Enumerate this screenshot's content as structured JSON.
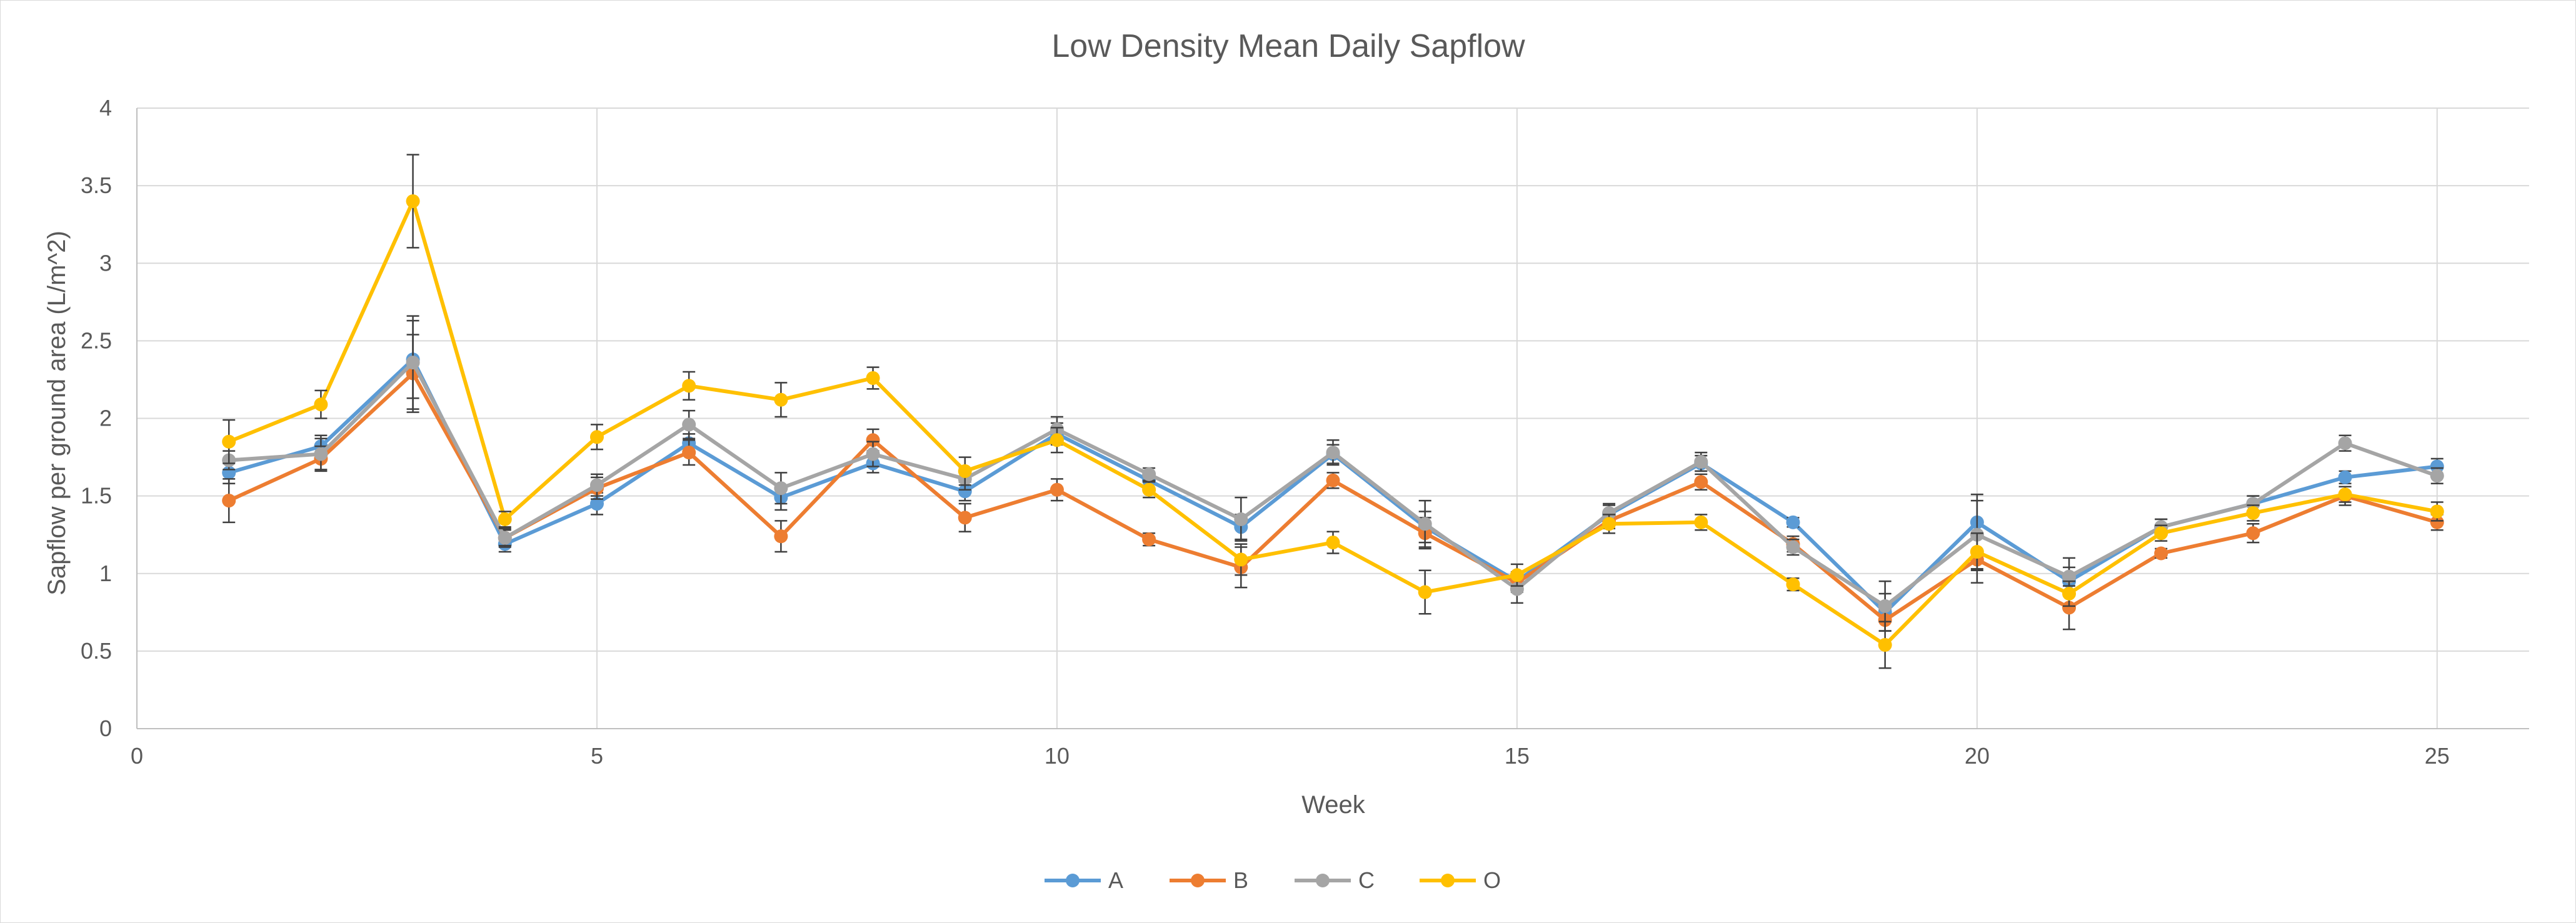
{
  "chart_data": {
    "type": "line",
    "title": "Low Density Mean Daily Sapflow",
    "xlabel": "Week",
    "ylabel": "Sapflow per ground area (L/m^2)",
    "xlim": [
      0,
      26
    ],
    "ylim": [
      0,
      4
    ],
    "x_ticks": [
      0,
      5,
      10,
      15,
      20,
      25
    ],
    "y_ticks": [
      0,
      0.5,
      1,
      1.5,
      2,
      2.5,
      3,
      3.5,
      4
    ],
    "x_tick_labels": [
      "0",
      "5",
      "10",
      "15",
      "20",
      "25"
    ],
    "y_tick_labels": [
      "0",
      "0.5",
      "1",
      "1.5",
      "2",
      "2.5",
      "3",
      "3.5",
      "4"
    ],
    "grid": true,
    "legend_position": "bottom",
    "x": [
      1,
      2,
      3,
      4,
      5,
      6,
      7,
      8,
      9,
      10,
      11,
      12,
      13,
      14,
      15,
      16,
      17,
      18,
      19,
      20,
      21,
      22,
      23,
      24,
      25
    ],
    "series": [
      {
        "name": "A",
        "color": "#5B9BD5",
        "values": [
          1.65,
          1.82,
          2.38,
          1.19,
          1.45,
          1.84,
          1.49,
          1.71,
          1.53,
          1.9,
          1.6,
          1.3,
          1.77,
          1.3,
          0.95,
          1.38,
          1.71,
          1.33,
          0.75,
          1.33,
          0.95,
          1.3,
          1.45,
          1.62,
          1.69
        ],
        "errors": [
          0.07,
          0.07,
          0.25,
          0.05,
          0.07,
          0.06,
          0.08,
          0.06,
          0.06,
          0.07,
          0.05,
          0.08,
          0.06,
          0.1,
          0.06,
          0.06,
          0.05,
          0.03,
          0.12,
          0.18,
          0.09,
          0.05,
          0.05,
          0.04,
          0.05
        ]
      },
      {
        "name": "B",
        "color": "#ED7D31",
        "values": [
          1.47,
          1.74,
          2.29,
          1.23,
          1.55,
          1.78,
          1.24,
          1.86,
          1.36,
          1.54,
          1.22,
          1.04,
          1.6,
          1.26,
          0.94,
          1.34,
          1.59,
          1.19,
          0.7,
          1.09,
          0.78,
          1.13,
          1.26,
          1.5,
          1.33
        ],
        "errors": [
          0.14,
          0.08,
          0.25,
          0.05,
          0.07,
          0.08,
          0.1,
          0.07,
          0.09,
          0.07,
          0.04,
          0.13,
          0.05,
          0.1,
          0.06,
          0.05,
          0.05,
          0.05,
          0.07,
          0.15,
          0.14,
          0.03,
          0.06,
          0.06,
          0.05
        ]
      },
      {
        "name": "C",
        "color": "#A5A5A5",
        "values": [
          1.73,
          1.77,
          2.36,
          1.23,
          1.57,
          1.96,
          1.55,
          1.77,
          1.61,
          1.93,
          1.64,
          1.35,
          1.78,
          1.32,
          0.9,
          1.39,
          1.72,
          1.17,
          0.79,
          1.25,
          0.98,
          1.3,
          1.45,
          1.84,
          1.63
        ],
        "errors": [
          0.06,
          0.1,
          0.3,
          0.06,
          0.07,
          0.09,
          0.1,
          0.08,
          0.07,
          0.08,
          0.04,
          0.14,
          0.08,
          0.15,
          0.09,
          0.06,
          0.06,
          0.05,
          0.16,
          0.22,
          0.12,
          0.05,
          0.05,
          0.05,
          0.05
        ]
      },
      {
        "name": "O",
        "color": "#FFC000",
        "values": [
          1.85,
          2.09,
          3.4,
          1.35,
          1.88,
          2.21,
          2.12,
          2.26,
          1.66,
          1.86,
          1.54,
          1.09,
          1.2,
          0.88,
          0.99,
          1.32,
          1.33,
          0.93,
          0.54,
          1.14,
          0.87,
          1.26,
          1.39,
          1.51,
          1.4
        ],
        "errors": [
          0.14,
          0.09,
          0.3,
          0.05,
          0.08,
          0.09,
          0.11,
          0.07,
          0.09,
          0.08,
          0.05,
          0.1,
          0.07,
          0.14,
          0.07,
          0.06,
          0.05,
          0.04,
          0.15,
          0.12,
          0.08,
          0.05,
          0.05,
          0.05,
          0.06
        ]
      }
    ]
  }
}
